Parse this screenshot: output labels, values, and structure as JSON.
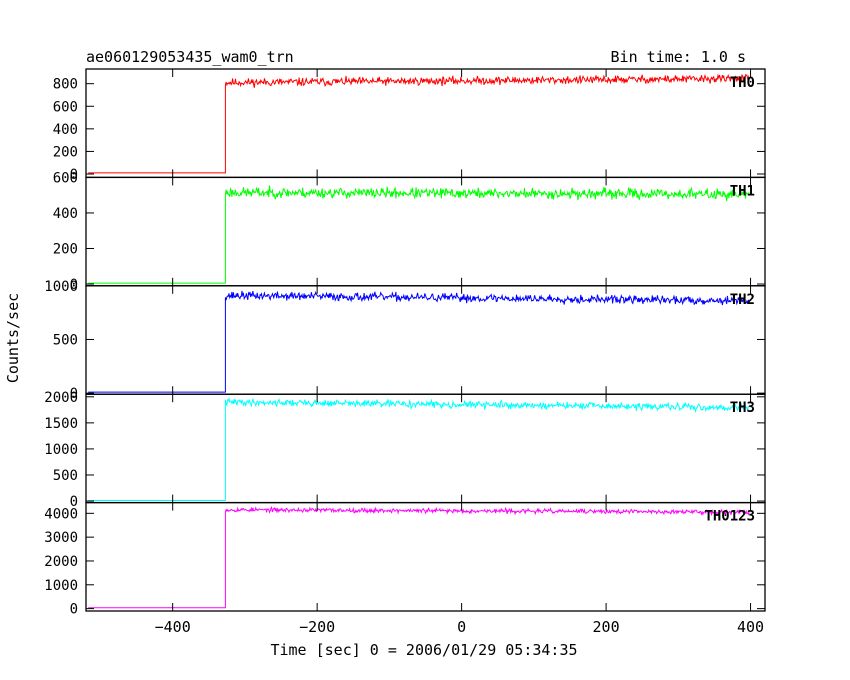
{
  "header": {
    "title": "ae060129053435_wam0_trn",
    "bin_time": "Bin time: 1.0 s"
  },
  "chart_data": {
    "type": "line",
    "title": "ae060129053435_wam0_trn",
    "xlabel": "Time [sec] 0 = 2006/01/29 05:34:35",
    "ylabel": "Counts/sec",
    "xlim": [
      -520,
      420
    ],
    "x_ticks": [
      -400,
      -200,
      0,
      200,
      400
    ],
    "x_tick_labels": [
      "−400",
      "−200",
      "0",
      "200",
      "400"
    ],
    "onset_time": -327,
    "data_end_time": 398,
    "panels": [
      {
        "name": "TH0",
        "color": "#ff0000",
        "ylim": [
          -30,
          930
        ],
        "y_ticks": [
          0,
          200,
          400,
          600,
          800
        ],
        "y_tick_labels": [
          "0",
          "200",
          "400",
          "600",
          "800"
        ],
        "pre_level": 10,
        "post_start": 810,
        "post_end": 845,
        "noise": 22,
        "seed": 11
      },
      {
        "name": "TH1",
        "color": "#00ff00",
        "ylim": [
          -10,
          600
        ],
        "y_ticks": [
          0,
          200,
          400,
          600
        ],
        "y_tick_labels": [
          "0",
          "200",
          "400",
          "600"
        ],
        "pre_level": 5,
        "post_start": 515,
        "post_end": 505,
        "noise": 18,
        "seed": 23
      },
      {
        "name": "TH2",
        "color": "#0000ff",
        "ylim": [
          -10,
          1000
        ],
        "y_ticks": [
          0,
          500,
          1000
        ],
        "y_tick_labels": [
          "0",
          "500",
          "1000"
        ],
        "pre_level": 10,
        "post_start": 910,
        "post_end": 860,
        "noise": 24,
        "seed": 37
      },
      {
        "name": "TH3",
        "color": "#00ffff",
        "ylim": [
          -30,
          2050
        ],
        "y_ticks": [
          0,
          500,
          1000,
          1500,
          2000
        ],
        "y_tick_labels": [
          "0",
          "500",
          "1000",
          "1500",
          "2000"
        ],
        "pre_level": 10,
        "post_start": 1900,
        "post_end": 1790,
        "noise": 40,
        "seed": 41
      },
      {
        "name": "TH0123",
        "color": "#ff00ff",
        "ylim": [
          -100,
          4450
        ],
        "y_ticks": [
          0,
          1000,
          2000,
          3000,
          4000
        ],
        "y_tick_labels": [
          "0",
          "1000",
          "2000",
          "3000",
          "4000"
        ],
        "pre_level": 40,
        "post_start": 4150,
        "post_end": 4050,
        "noise": 55,
        "seed": 53
      }
    ]
  }
}
